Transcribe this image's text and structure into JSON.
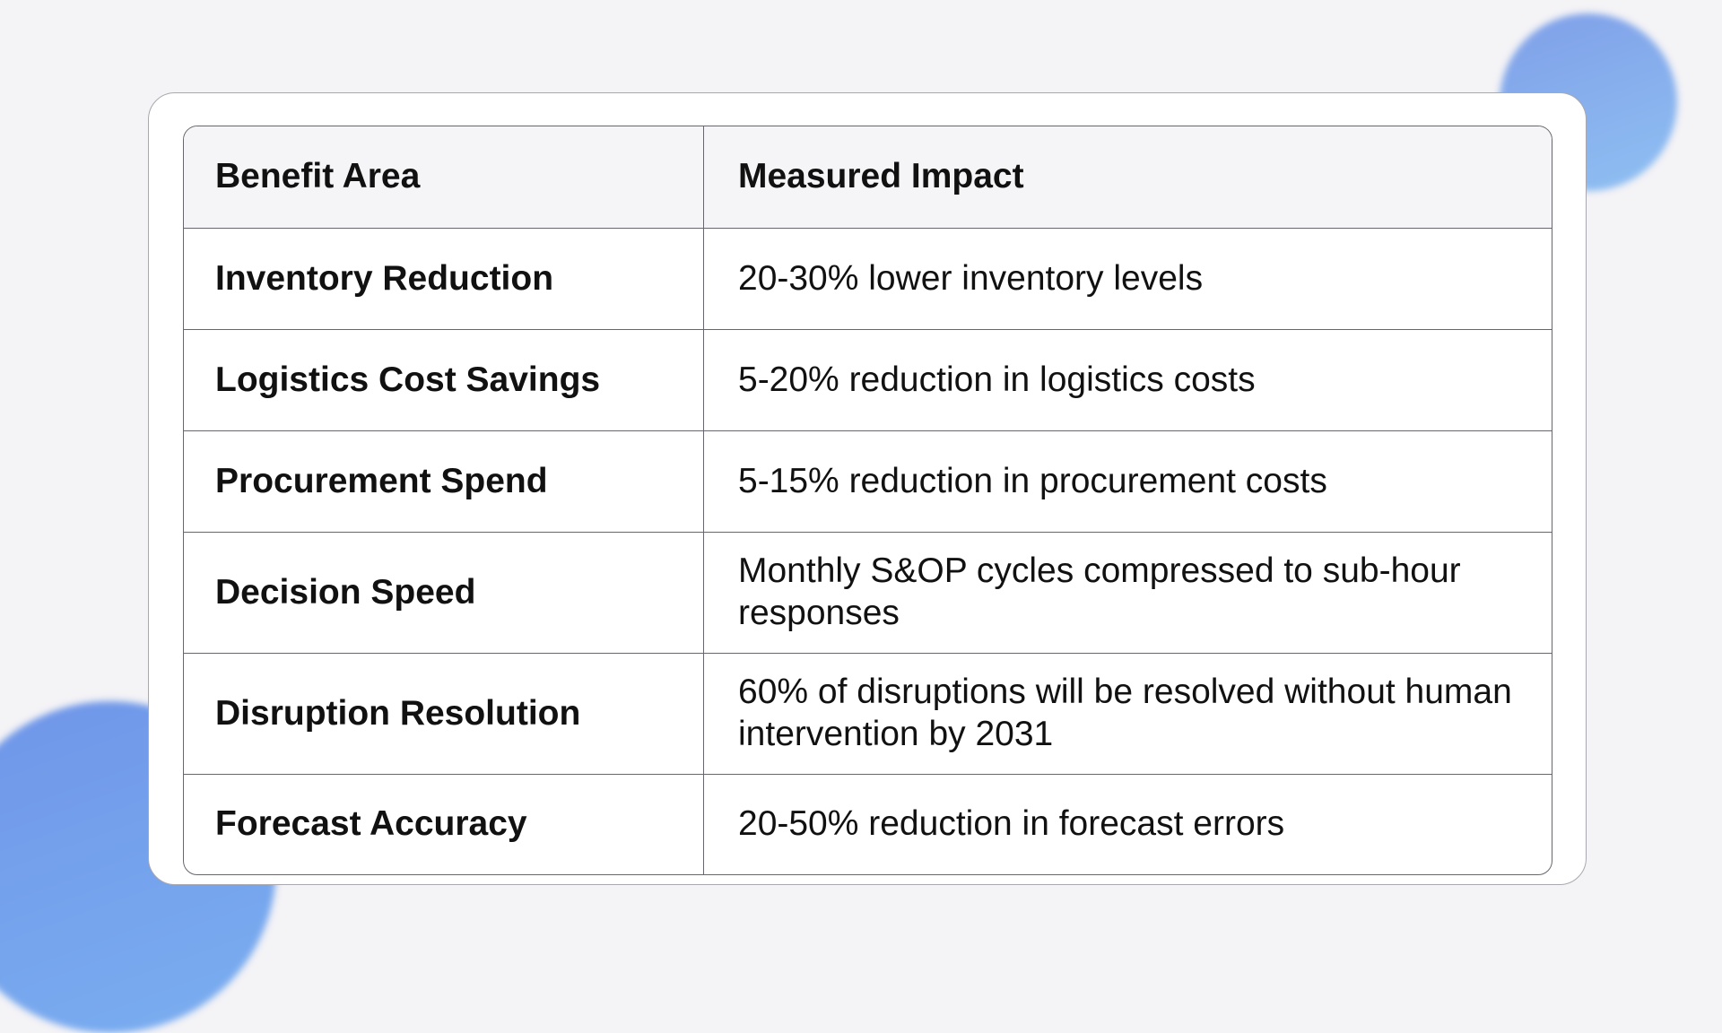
{
  "table": {
    "headers": [
      "Benefit Area",
      "Measured Impact"
    ],
    "rows": [
      {
        "area": "Inventory Reduction",
        "impact": "20-30% lower inventory levels"
      },
      {
        "area": "Logistics Cost Savings",
        "impact": "5-20% reduction in logistics costs"
      },
      {
        "area": "Procurement Spend",
        "impact": "5-15% reduction in procurement costs"
      },
      {
        "area": "Decision Speed",
        "impact": "Monthly S&OP cycles compressed to sub-hour responses"
      },
      {
        "area": "Disruption Resolution",
        "impact": "60% of disruptions will be resolved without human intervention by 2031"
      },
      {
        "area": "Forecast Accuracy",
        "impact": "20-50% reduction in forecast errors"
      }
    ]
  },
  "colors": {
    "background": "#f4f3f6",
    "accent_blob": "#7f9fe8",
    "header_bg": "#f5f4f6",
    "border": "#66666c"
  }
}
